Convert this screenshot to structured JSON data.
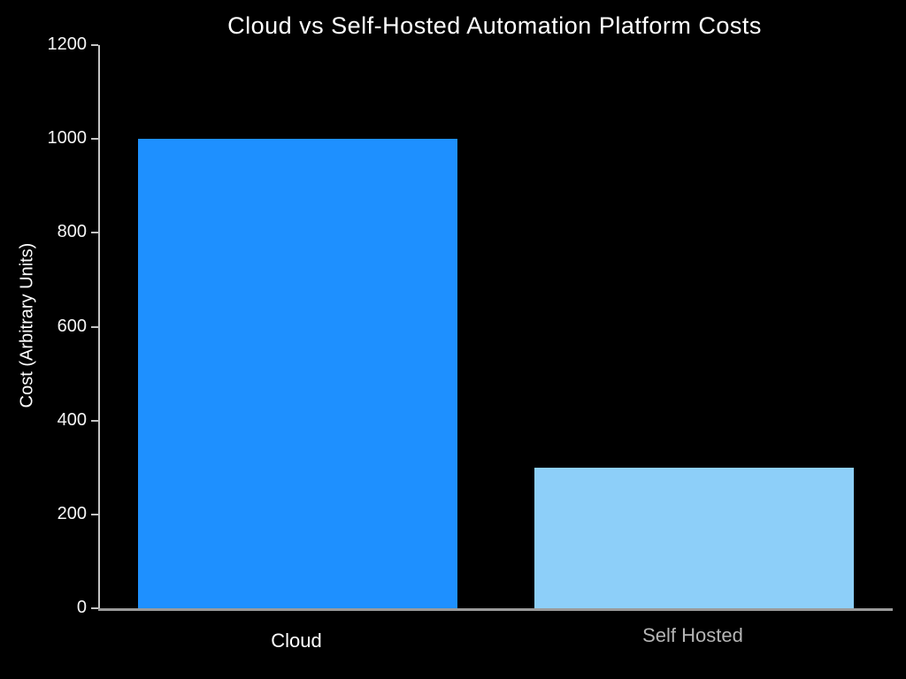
{
  "chart_data": {
    "type": "bar",
    "title": "Cloud vs Self-Hosted Automation Platform Costs",
    "xlabel": "",
    "ylabel": "Cost (Arbitrary Units)",
    "categories": [
      "Cloud",
      "Self Hosted"
    ],
    "values": [
      1000,
      300
    ],
    "bar_colors": [
      "#1E90FF",
      "#8DCFF9"
    ],
    "category_label_colors": [
      "#ffffff",
      "#b5b5b5"
    ],
    "ylim": [
      0,
      1200
    ],
    "yticks": [
      0,
      200,
      400,
      600,
      800,
      1000,
      1200
    ],
    "grid": false,
    "legend": "none",
    "background_color": "#000000",
    "text_color": "#ffffff",
    "x_axis_color": "#9a9a9a",
    "y_axis_color": "#c4c4c4"
  }
}
